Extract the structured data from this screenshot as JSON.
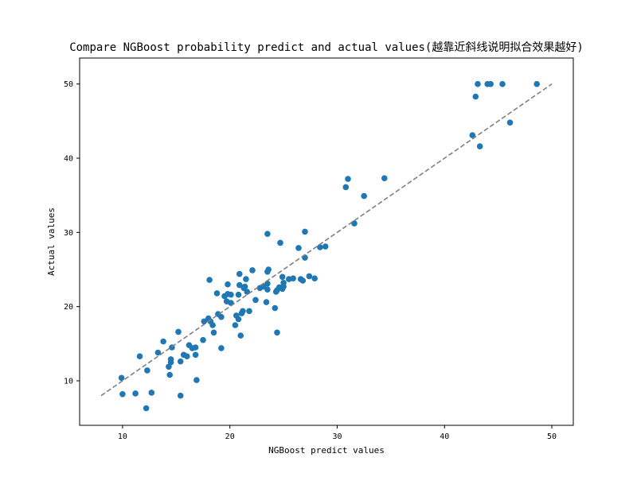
{
  "chart_data": {
    "type": "scatter",
    "title": "Compare NGBoost probability predict and actual values(越靠近斜线说明拟合效果越好)",
    "xlabel": "NGBoost predict values",
    "ylabel": "Actual values",
    "xlim": [
      6.0,
      52.0
    ],
    "ylim": [
      4.0,
      53.5
    ],
    "xticks": [
      10,
      20,
      30,
      40,
      50
    ],
    "yticks": [
      10,
      20,
      30,
      40,
      50
    ],
    "grid": false,
    "reference_line": {
      "x": [
        8,
        50
      ],
      "y": [
        8,
        50
      ],
      "style": "dashed",
      "color": "#808080"
    },
    "marker_color": "#1f77b4",
    "points": [
      [
        9.9,
        10.4
      ],
      [
        10.0,
        8.2
      ],
      [
        11.2,
        8.3
      ],
      [
        11.6,
        13.3
      ],
      [
        12.2,
        6.3
      ],
      [
        12.3,
        11.4
      ],
      [
        12.7,
        8.4
      ],
      [
        13.3,
        13.8
      ],
      [
        13.8,
        15.3
      ],
      [
        14.3,
        11.9
      ],
      [
        14.5,
        12.5
      ],
      [
        14.5,
        12.9
      ],
      [
        14.4,
        10.8
      ],
      [
        14.6,
        14.5
      ],
      [
        15.2,
        16.6
      ],
      [
        15.4,
        8.0
      ],
      [
        15.4,
        12.6
      ],
      [
        15.7,
        13.5
      ],
      [
        16.0,
        13.3
      ],
      [
        16.2,
        14.8
      ],
      [
        16.5,
        14.4
      ],
      [
        16.8,
        13.5
      ],
      [
        16.8,
        14.5
      ],
      [
        16.9,
        10.1
      ],
      [
        17.5,
        15.5
      ],
      [
        17.6,
        18.0
      ],
      [
        18.0,
        18.4
      ],
      [
        18.1,
        23.6
      ],
      [
        18.2,
        18.0
      ],
      [
        18.4,
        17.5
      ],
      [
        18.5,
        16.5
      ],
      [
        18.8,
        21.8
      ],
      [
        18.9,
        19.0
      ],
      [
        19.2,
        18.6
      ],
      [
        19.2,
        14.4
      ],
      [
        19.5,
        21.4
      ],
      [
        19.7,
        20.7
      ],
      [
        19.8,
        23.0
      ],
      [
        19.8,
        21.7
      ],
      [
        20.1,
        20.5
      ],
      [
        20.1,
        21.6
      ],
      [
        20.5,
        17.5
      ],
      [
        20.6,
        18.8
      ],
      [
        20.8,
        18.3
      ],
      [
        20.8,
        21.6
      ],
      [
        20.9,
        22.9
      ],
      [
        20.9,
        24.4
      ],
      [
        21.0,
        16.1
      ],
      [
        21.1,
        19.1
      ],
      [
        21.2,
        19.4
      ],
      [
        21.3,
        22.5
      ],
      [
        21.4,
        22.7
      ],
      [
        21.5,
        23.7
      ],
      [
        21.6,
        22.0
      ],
      [
        21.8,
        19.4
      ],
      [
        22.1,
        24.9
      ],
      [
        22.4,
        20.9
      ],
      [
        22.8,
        22.5
      ],
      [
        23.1,
        22.7
      ],
      [
        23.5,
        29.8
      ],
      [
        23.4,
        20.6
      ],
      [
        23.5,
        22.3
      ],
      [
        23.5,
        23.1
      ],
      [
        23.5,
        24.7
      ],
      [
        23.6,
        25.0
      ],
      [
        24.2,
        19.8
      ],
      [
        24.3,
        22.0
      ],
      [
        24.4,
        22.2
      ],
      [
        24.4,
        16.5
      ],
      [
        24.6,
        22.6
      ],
      [
        24.7,
        28.6
      ],
      [
        24.9,
        22.4
      ],
      [
        24.9,
        24.0
      ],
      [
        25.0,
        23.2
      ],
      [
        25.0,
        22.7
      ],
      [
        25.5,
        23.7
      ],
      [
        25.9,
        23.8
      ],
      [
        26.4,
        27.9
      ],
      [
        26.6,
        23.7
      ],
      [
        26.8,
        23.5
      ],
      [
        27.0,
        26.6
      ],
      [
        27.0,
        30.1
      ],
      [
        27.4,
        24.1
      ],
      [
        27.9,
        23.8
      ],
      [
        28.4,
        28.0
      ],
      [
        28.9,
        28.1
      ],
      [
        30.8,
        36.1
      ],
      [
        31.0,
        37.2
      ],
      [
        31.6,
        31.2
      ],
      [
        32.5,
        34.9
      ],
      [
        34.4,
        37.3
      ],
      [
        42.6,
        43.1
      ],
      [
        42.9,
        48.3
      ],
      [
        43.1,
        50.0
      ],
      [
        43.3,
        41.6
      ],
      [
        44.0,
        50.0
      ],
      [
        44.3,
        50.0
      ],
      [
        45.4,
        50.0
      ],
      [
        46.1,
        44.8
      ],
      [
        48.6,
        50.0
      ]
    ]
  }
}
